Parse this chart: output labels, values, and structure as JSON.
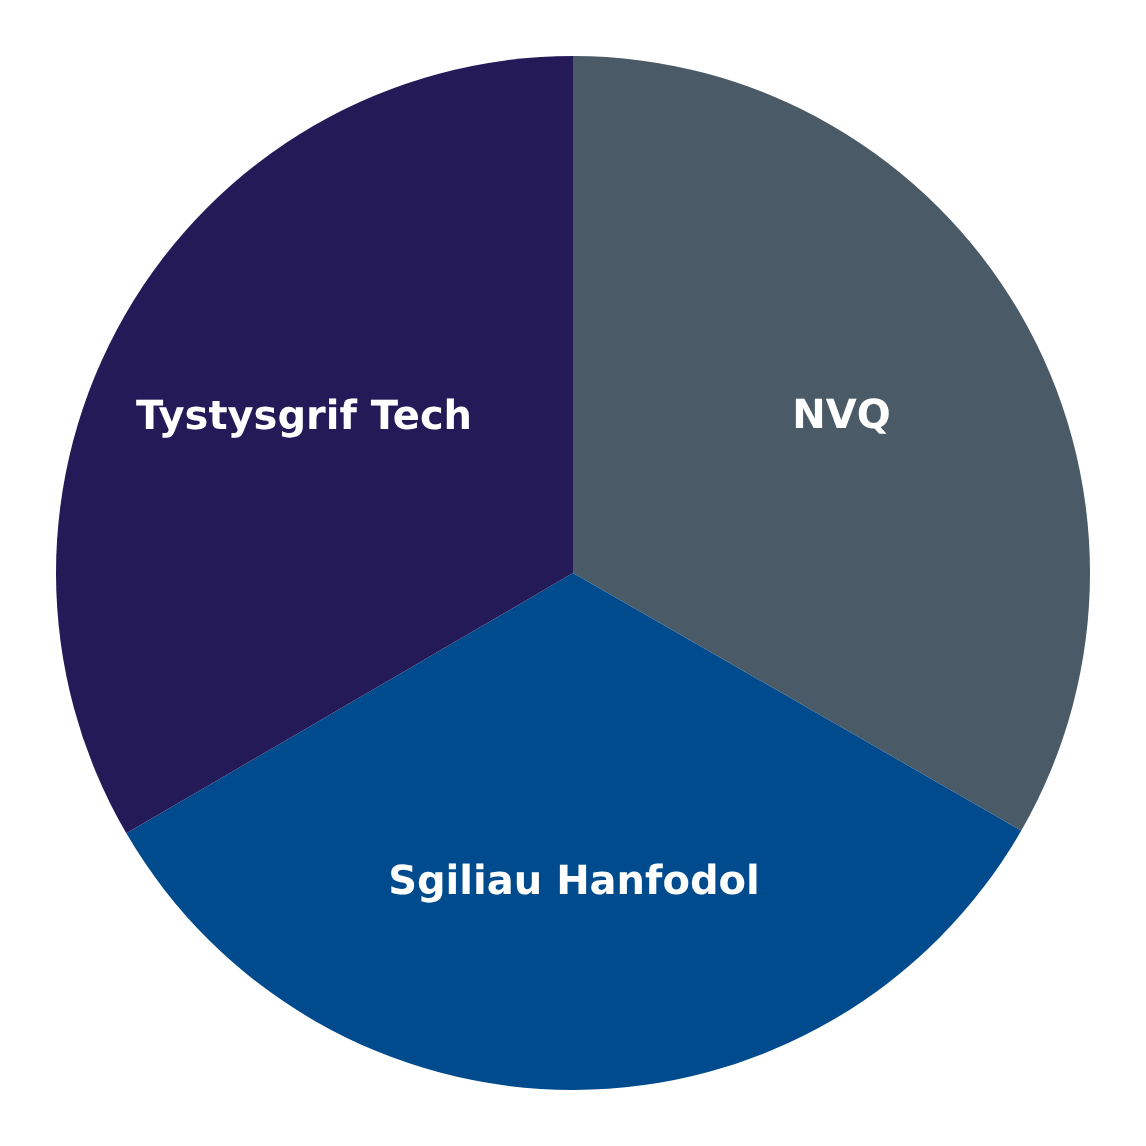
{
  "chart_data": {
    "type": "pie",
    "categories": [
      "NVQ",
      "Sgiliau Hanfodol",
      "Tystysgrif Tech"
    ],
    "values": [
      33.3,
      33.3,
      33.4
    ],
    "colors": [
      "#4a5a66",
      "#004b8d",
      "#231a57"
    ],
    "legend": false
  }
}
